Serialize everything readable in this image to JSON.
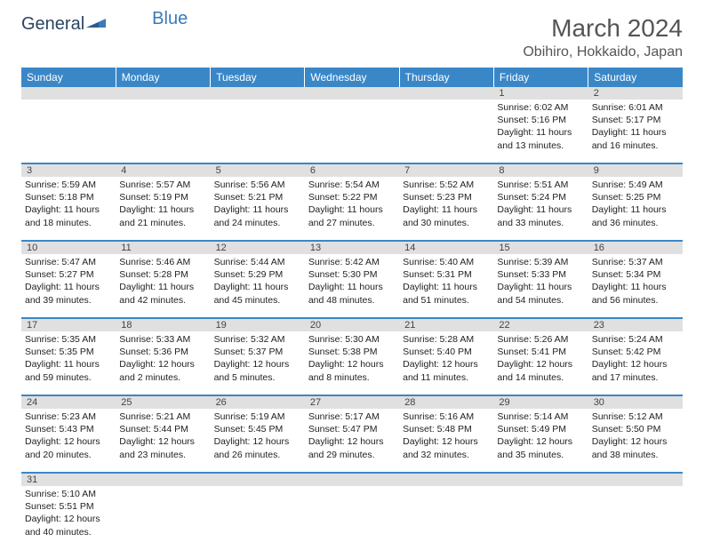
{
  "brand": {
    "part1": "General",
    "part2": "Blue"
  },
  "title": "March 2024",
  "location": "Obihiro, Hokkaido, Japan",
  "colors": {
    "header_bg": "#3a87c8",
    "row_divider": "#3a87c8",
    "daynum_bg": "#e0e0e0",
    "brand1": "#2a4560",
    "brand2": "#3a7ab8"
  },
  "weekdays": [
    "Sunday",
    "Monday",
    "Tuesday",
    "Wednesday",
    "Thursday",
    "Friday",
    "Saturday"
  ],
  "weeks": [
    [
      null,
      null,
      null,
      null,
      null,
      {
        "n": "1",
        "sr": "6:02 AM",
        "ss": "5:16 PM",
        "d": "11 hours and 13 minutes."
      },
      {
        "n": "2",
        "sr": "6:01 AM",
        "ss": "5:17 PM",
        "d": "11 hours and 16 minutes."
      }
    ],
    [
      {
        "n": "3",
        "sr": "5:59 AM",
        "ss": "5:18 PM",
        "d": "11 hours and 18 minutes."
      },
      {
        "n": "4",
        "sr": "5:57 AM",
        "ss": "5:19 PM",
        "d": "11 hours and 21 minutes."
      },
      {
        "n": "5",
        "sr": "5:56 AM",
        "ss": "5:21 PM",
        "d": "11 hours and 24 minutes."
      },
      {
        "n": "6",
        "sr": "5:54 AM",
        "ss": "5:22 PM",
        "d": "11 hours and 27 minutes."
      },
      {
        "n": "7",
        "sr": "5:52 AM",
        "ss": "5:23 PM",
        "d": "11 hours and 30 minutes."
      },
      {
        "n": "8",
        "sr": "5:51 AM",
        "ss": "5:24 PM",
        "d": "11 hours and 33 minutes."
      },
      {
        "n": "9",
        "sr": "5:49 AM",
        "ss": "5:25 PM",
        "d": "11 hours and 36 minutes."
      }
    ],
    [
      {
        "n": "10",
        "sr": "5:47 AM",
        "ss": "5:27 PM",
        "d": "11 hours and 39 minutes."
      },
      {
        "n": "11",
        "sr": "5:46 AM",
        "ss": "5:28 PM",
        "d": "11 hours and 42 minutes."
      },
      {
        "n": "12",
        "sr": "5:44 AM",
        "ss": "5:29 PM",
        "d": "11 hours and 45 minutes."
      },
      {
        "n": "13",
        "sr": "5:42 AM",
        "ss": "5:30 PM",
        "d": "11 hours and 48 minutes."
      },
      {
        "n": "14",
        "sr": "5:40 AM",
        "ss": "5:31 PM",
        "d": "11 hours and 51 minutes."
      },
      {
        "n": "15",
        "sr": "5:39 AM",
        "ss": "5:33 PM",
        "d": "11 hours and 54 minutes."
      },
      {
        "n": "16",
        "sr": "5:37 AM",
        "ss": "5:34 PM",
        "d": "11 hours and 56 minutes."
      }
    ],
    [
      {
        "n": "17",
        "sr": "5:35 AM",
        "ss": "5:35 PM",
        "d": "11 hours and 59 minutes."
      },
      {
        "n": "18",
        "sr": "5:33 AM",
        "ss": "5:36 PM",
        "d": "12 hours and 2 minutes."
      },
      {
        "n": "19",
        "sr": "5:32 AM",
        "ss": "5:37 PM",
        "d": "12 hours and 5 minutes."
      },
      {
        "n": "20",
        "sr": "5:30 AM",
        "ss": "5:38 PM",
        "d": "12 hours and 8 minutes."
      },
      {
        "n": "21",
        "sr": "5:28 AM",
        "ss": "5:40 PM",
        "d": "12 hours and 11 minutes."
      },
      {
        "n": "22",
        "sr": "5:26 AM",
        "ss": "5:41 PM",
        "d": "12 hours and 14 minutes."
      },
      {
        "n": "23",
        "sr": "5:24 AM",
        "ss": "5:42 PM",
        "d": "12 hours and 17 minutes."
      }
    ],
    [
      {
        "n": "24",
        "sr": "5:23 AM",
        "ss": "5:43 PM",
        "d": "12 hours and 20 minutes."
      },
      {
        "n": "25",
        "sr": "5:21 AM",
        "ss": "5:44 PM",
        "d": "12 hours and 23 minutes."
      },
      {
        "n": "26",
        "sr": "5:19 AM",
        "ss": "5:45 PM",
        "d": "12 hours and 26 minutes."
      },
      {
        "n": "27",
        "sr": "5:17 AM",
        "ss": "5:47 PM",
        "d": "12 hours and 29 minutes."
      },
      {
        "n": "28",
        "sr": "5:16 AM",
        "ss": "5:48 PM",
        "d": "12 hours and 32 minutes."
      },
      {
        "n": "29",
        "sr": "5:14 AM",
        "ss": "5:49 PM",
        "d": "12 hours and 35 minutes."
      },
      {
        "n": "30",
        "sr": "5:12 AM",
        "ss": "5:50 PM",
        "d": "12 hours and 38 minutes."
      }
    ],
    [
      {
        "n": "31",
        "sr": "5:10 AM",
        "ss": "5:51 PM",
        "d": "12 hours and 40 minutes."
      },
      null,
      null,
      null,
      null,
      null,
      null
    ]
  ],
  "labels": {
    "sunrise": "Sunrise:",
    "sunset": "Sunset:",
    "daylight": "Daylight:"
  }
}
